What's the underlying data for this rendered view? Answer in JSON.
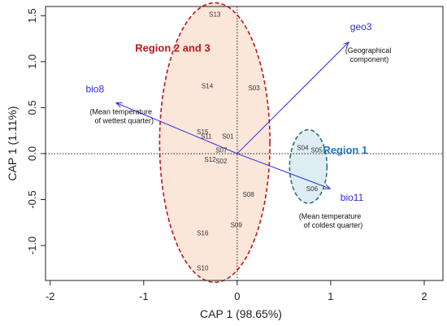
{
  "chart_data": {
    "type": "scatter",
    "title": "",
    "xlabel": "CAP 1 (98.65%)",
    "ylabel": "CAP 1 (1.11%)",
    "xlim": [
      -2.05,
      2.2
    ],
    "ylim": [
      -1.38,
      1.6
    ],
    "xticks": [
      -2,
      -1,
      0,
      1,
      2
    ],
    "yticks": [
      -1.0,
      -0.5,
      0.0,
      0.5,
      1.0,
      1.5
    ],
    "xtick_labels": [
      "-2",
      "-1",
      "0",
      "1",
      "2"
    ],
    "ytick_labels": [
      "-1.0",
      "-0.5",
      "0.0",
      "0.5",
      "1.0",
      "1.5"
    ],
    "reference_lines": {
      "x": 0,
      "y": 0,
      "style": "dotted"
    },
    "sites": [
      {
        "label": "S01",
        "x": -0.1,
        "y": 0.18
      },
      {
        "label": "S02",
        "x": -0.17,
        "y": -0.09
      },
      {
        "label": "S03",
        "x": 0.18,
        "y": 0.71
      },
      {
        "label": "S04",
        "x": 0.7,
        "y": 0.06
      },
      {
        "label": "S05",
        "x": 0.85,
        "y": 0.03
      },
      {
        "label": "S06",
        "x": 0.8,
        "y": -0.39
      },
      {
        "label": "S07",
        "x": -0.17,
        "y": 0.03
      },
      {
        "label": "S08",
        "x": 0.12,
        "y": -0.45
      },
      {
        "label": "S09",
        "x": -0.01,
        "y": -0.78
      },
      {
        "label": "S10",
        "x": -0.37,
        "y": -1.25
      },
      {
        "label": "S11",
        "x": -0.33,
        "y": 0.18
      },
      {
        "label": "S12",
        "x": -0.29,
        "y": -0.07
      },
      {
        "label": "S13",
        "x": -0.24,
        "y": 1.51
      },
      {
        "label": "S14",
        "x": -0.32,
        "y": 0.73
      },
      {
        "label": "S15",
        "x": -0.37,
        "y": 0.23
      },
      {
        "label": "S16",
        "x": -0.37,
        "y": -0.87
      }
    ],
    "vectors": [
      {
        "name": "bio8",
        "x": -1.29,
        "y": 0.55,
        "description": [
          "(Mean temperature",
          "of wettest quarter)"
        ]
      },
      {
        "name": "bio11",
        "x": 0.99,
        "y": -0.38,
        "description": [
          "(Mean temperature",
          "of coldest quarter)"
        ]
      },
      {
        "name": "geo3",
        "x": 1.19,
        "y": 1.21,
        "description": [
          "(Geographical",
          "component)"
        ]
      }
    ],
    "regions": [
      {
        "label": "Region 2 and 3",
        "color": "#c0161b",
        "fill": "#fbe6da",
        "center": [
          -0.24,
          0.12
        ],
        "radius": [
          0.59,
          1.52
        ]
      },
      {
        "label": "Region 1",
        "color": "#2f6f7f",
        "fill": "#deedf3",
        "center": [
          0.76,
          -0.14
        ],
        "radius": [
          0.2,
          0.4
        ]
      }
    ],
    "colors": {
      "vector": "#2b2be0",
      "region_2_3": "#c0161b",
      "region_1": "#1f78c8"
    }
  }
}
